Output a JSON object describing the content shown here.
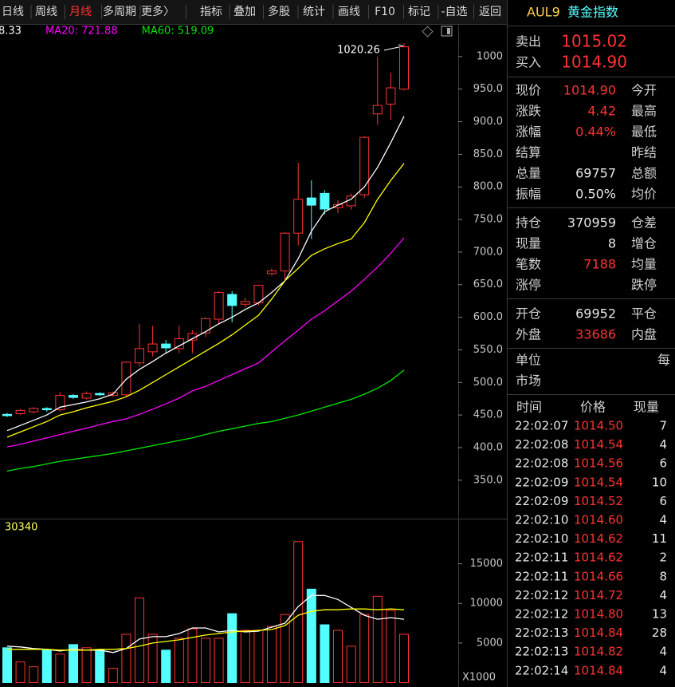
{
  "toolbar": {
    "items": [
      "日线",
      "周线",
      "月线",
      "多周期",
      "更多〉",
      "指标",
      "叠加",
      "多股",
      "统计",
      "画线",
      "F10",
      "标记",
      "-自选",
      "返回"
    ],
    "active": "月线"
  },
  "symbol": {
    "code": "AUL9",
    "name": "黄金指数"
  },
  "chart_data": [
    {
      "type": "candlestick",
      "up_color": "#ff3232",
      "down_color": "#54ffff",
      "open": [
        451,
        452,
        455,
        460,
        458,
        480,
        476,
        483,
        480,
        481,
        530,
        547,
        559,
        552,
        565,
        576,
        597,
        635,
        620,
        622,
        667,
        671,
        729,
        783,
        790,
        768,
        771,
        788,
        912,
        927,
        950
      ],
      "high": [
        453,
        459,
        462,
        462,
        485,
        482,
        486,
        485,
        486,
        532,
        590,
        587,
        565,
        587,
        580,
        600,
        640,
        640,
        630,
        650,
        675,
        731,
        837,
        810,
        795,
        780,
        790,
        878,
        1000,
        975,
        1020.26
      ],
      "low": [
        447,
        450,
        452,
        455,
        455,
        475,
        474,
        479,
        478,
        478,
        525,
        540,
        545,
        545,
        545,
        570,
        590,
        592,
        615,
        618,
        664,
        655,
        710,
        720,
        758,
        760,
        765,
        783,
        895,
        903,
        948
      ],
      "close": [
        449,
        457,
        460,
        458,
        480,
        477,
        483,
        481,
        484,
        531,
        552,
        559,
        553,
        567,
        575,
        598,
        638,
        618,
        624,
        649,
        671,
        729,
        781,
        772,
        766,
        773,
        786,
        876,
        925,
        952,
        1014.9
      ],
      "series": [
        {
          "label": "8.33",
          "color": "#ffffff",
          "values": [
            426,
            434,
            442,
            450,
            462,
            466,
            470,
            475,
            482,
            505,
            520,
            532,
            545,
            556,
            567,
            578,
            590,
            600,
            612,
            622,
            638,
            656,
            690,
            732,
            762,
            772,
            781,
            800,
            830,
            868,
            908.33
          ]
        },
        {
          "color": "#ffff00",
          "values": [
            416,
            424,
            432,
            440,
            450,
            455,
            461,
            466,
            471,
            478,
            488,
            500,
            512,
            524,
            536,
            548,
            560,
            573,
            588,
            603,
            628,
            656,
            675,
            695,
            705,
            713,
            720,
            745,
            781,
            810,
            836
          ]
        },
        {
          "label": "MA20: 721.88",
          "color": "#ff00ff",
          "values": [
            401,
            405,
            410,
            415,
            420,
            425,
            430,
            435,
            440,
            444,
            451,
            459,
            467,
            476,
            487,
            494,
            503,
            512,
            521,
            530,
            547,
            564,
            580,
            597,
            610,
            625,
            640,
            658,
            677,
            698,
            721.88
          ]
        },
        {
          "label": "MA60: 519.09",
          "color": "#00e600",
          "values": [
            364,
            368,
            371,
            375,
            379,
            382,
            385,
            388,
            391,
            395,
            399,
            403,
            407,
            411,
            415,
            420,
            425,
            429,
            433,
            437,
            440,
            445,
            450,
            456,
            462,
            468,
            474,
            482,
            491,
            503,
            519.09
          ]
        }
      ],
      "max_label": "1020.26",
      "ylim": [
        291,
        1050
      ],
      "yticks": [
        1000,
        {
          "value": 950,
          "label": "950.0"
        },
        {
          "value": 900,
          "label": "900.0"
        },
        {
          "value": 850,
          "label": "850.0"
        },
        {
          "value": 800,
          "label": "800.0"
        },
        {
          "value": 750,
          "label": "750.0"
        },
        {
          "value": 700,
          "label": "700.0"
        },
        {
          "value": 650,
          "label": "650.0"
        },
        {
          "value": 600,
          "label": "600.0"
        },
        {
          "value": 550,
          "label": "550.0"
        },
        {
          "value": 500,
          "label": "500.0"
        },
        {
          "value": 450,
          "label": "450.0"
        },
        {
          "value": 400,
          "label": "400.0"
        },
        {
          "value": 350,
          "label": "350.0"
        }
      ]
    },
    {
      "type": "bar",
      "title": "30340",
      "values": [
        4400,
        2600,
        2000,
        4100,
        3600,
        4800,
        4400,
        4100,
        1800,
        6100,
        10700,
        6100,
        4100,
        5600,
        6800,
        5600,
        5600,
        8700,
        6600,
        6600,
        7100,
        8600,
        17800,
        11800,
        7300,
        6600,
        4600,
        8600,
        10900,
        9100,
        6100
      ],
      "series": [
        {
          "color": "#ffffff",
          "values": [
            4600,
            4500,
            4300,
            4200,
            4000,
            4200,
            4100,
            4100,
            3800,
            4300,
            5500,
            5800,
            5800,
            6200,
            6900,
            6900,
            6400,
            6600,
            6400,
            6500,
            7000,
            7500,
            9600,
            11000,
            11000,
            10500,
            9500,
            8500,
            8000,
            8200,
            8000
          ]
        },
        {
          "color": "#ffff00",
          "values": [
            4200,
            4200,
            4200,
            4200,
            4100,
            4100,
            4100,
            4200,
            4200,
            4300,
            4600,
            5000,
            5200,
            5400,
            5700,
            6000,
            6200,
            6400,
            6500,
            6600,
            6700,
            7200,
            8500,
            9000,
            9200,
            9200,
            9300,
            9300,
            9200,
            9300,
            9200
          ]
        }
      ],
      "ylim": [
        0,
        20500
      ],
      "yticks": [
        5000,
        10000,
        15000
      ],
      "unit_label": "X1000"
    }
  ],
  "quote": {
    "sell": {
      "label": "卖出",
      "value": "1015.02"
    },
    "buy": {
      "label": "买入",
      "value": "1014.90"
    },
    "groups": [
      [
        {
          "label": "现价",
          "value": "1014.90",
          "color": "#ff3232",
          "label2": "今开"
        },
        {
          "label": "涨跌",
          "value": "4.42",
          "color": "#ff3232",
          "label2": "最高"
        },
        {
          "label": "涨幅",
          "value": "0.44%",
          "color": "#ff3232",
          "label2": "最低"
        },
        {
          "label": "结算",
          "label2": "昨结"
        },
        {
          "label": "总量",
          "value": "69757",
          "label2": "总额"
        },
        {
          "label": "振幅",
          "value": "0.50%",
          "label2": "均价"
        }
      ],
      [
        {
          "label": "持仓",
          "value": "370959",
          "label2": "仓差"
        },
        {
          "label": "现量",
          "value": "8",
          "label2": "增仓"
        },
        {
          "label": "笔数",
          "value": "7188",
          "color": "#ff3232",
          "label2": "均量"
        },
        {
          "label": "涨停",
          "label2": "跌停"
        }
      ],
      [
        {
          "label": "开仓",
          "value": "69952",
          "label2": "平仓"
        },
        {
          "label": "外盘",
          "value": "33686",
          "color": "#ff3232",
          "label2": "内盘"
        }
      ]
    ],
    "unit": {
      "label": "单位",
      "value": "每"
    },
    "market": {
      "label": "市场"
    }
  },
  "trades": {
    "headers": [
      "时间",
      "价格",
      "现量"
    ],
    "rows": [
      [
        "22:02:07",
        "1014.50",
        "7"
      ],
      [
        "22:02:08",
        "1014.54",
        "4"
      ],
      [
        "22:02:08",
        "1014.56",
        "6"
      ],
      [
        "22:02:09",
        "1014.54",
        "10"
      ],
      [
        "22:02:09",
        "1014.52",
        "6"
      ],
      [
        "22:02:10",
        "1014.60",
        "4"
      ],
      [
        "22:02:10",
        "1014.62",
        "11"
      ],
      [
        "22:02:11",
        "1014.62",
        "2"
      ],
      [
        "22:02:11",
        "1014.66",
        "8"
      ],
      [
        "22:02:12",
        "1014.72",
        "4"
      ],
      [
        "22:02:12",
        "1014.80",
        "13"
      ],
      [
        "22:02:13",
        "1014.84",
        "28"
      ],
      [
        "22:02:13",
        "1014.82",
        "4"
      ],
      [
        "22:02:14",
        "1014.84",
        "4"
      ]
    ]
  }
}
